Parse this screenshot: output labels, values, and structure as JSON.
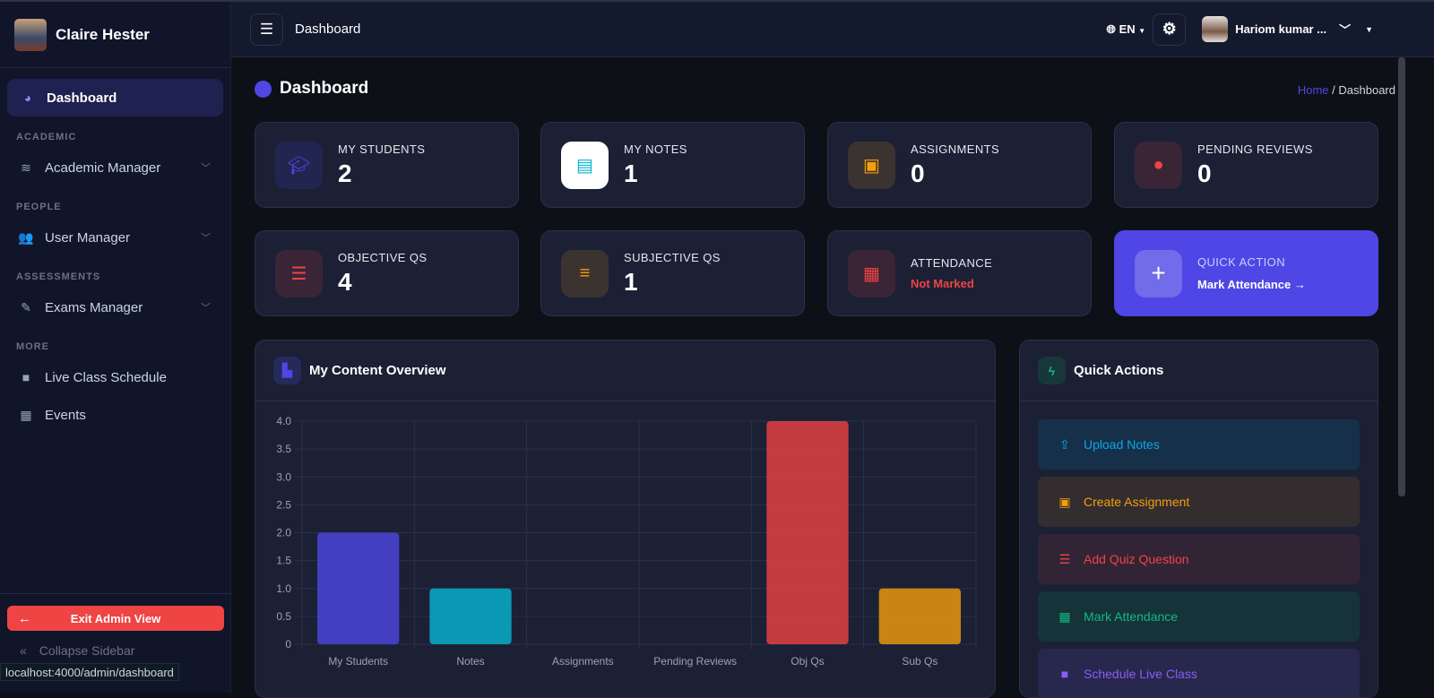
{
  "sidebar": {
    "user_name": "Claire Hester",
    "active": "Dashboard",
    "sections": [
      {
        "title": "ACADEMIC",
        "items": [
          {
            "label": "Academic Manager",
            "icon": "layers-icon"
          }
        ]
      },
      {
        "title": "PEOPLE",
        "items": [
          {
            "label": "User Manager",
            "icon": "users-icon"
          }
        ]
      },
      {
        "title": "ASSESSMENTS",
        "items": [
          {
            "label": "Exams Manager",
            "icon": "file-pen-icon"
          }
        ]
      },
      {
        "title": "MORE",
        "items": [
          {
            "label": "Live Class Schedule",
            "icon": "video-icon"
          },
          {
            "label": "Events",
            "icon": "calendar-icon"
          }
        ]
      }
    ],
    "exit_label": "Exit Admin View",
    "collapse_label": "Collapse Sidebar"
  },
  "status_url": "localhost:4000/admin/dashboard",
  "topbar": {
    "title": "Dashboard",
    "lang": "EN",
    "user": "Hariom kumar ..."
  },
  "page": {
    "title": "Dashboard",
    "breadcrumb": {
      "home": "Home",
      "current": "Dashboard"
    }
  },
  "stats": [
    {
      "label": "MY STUDENTS",
      "value": "2",
      "icon": "student-icon",
      "color": "#4f46e5"
    },
    {
      "label": "MY NOTES",
      "value": "1",
      "icon": "file-icon",
      "color": "#06b6d4"
    },
    {
      "label": "ASSIGNMENTS",
      "value": "0",
      "icon": "clipboard-icon",
      "color": "#f59e0b"
    },
    {
      "label": "PENDING REVIEWS",
      "value": "0",
      "icon": "clock-icon",
      "color": "#ef4444"
    },
    {
      "label": "OBJECTIVE QS",
      "value": "4",
      "icon": "list-check-icon",
      "color": "#ef4444"
    },
    {
      "label": "SUBJECTIVE QS",
      "value": "1",
      "icon": "align-left-icon",
      "color": "#f59e0b"
    },
    {
      "label": "ATTENDANCE",
      "value": "Not Marked",
      "icon": "calendar-icon",
      "color": "#ef4444"
    }
  ],
  "quick_action": {
    "label": "QUICK ACTION",
    "link": "Mark Attendance →"
  },
  "chart_panel": {
    "title": "My Content Overview"
  },
  "chart_data": {
    "type": "bar",
    "categories": [
      "My Students",
      "Notes",
      "Assignments",
      "Pending Reviews",
      "Obj Qs",
      "Sub Qs"
    ],
    "values": [
      2,
      1,
      0,
      0,
      4,
      1
    ],
    "colors": [
      "#4f46e5",
      "#06b6d4",
      "#f59e0b",
      "#ef4444",
      "#ef4444",
      "#f59e0b"
    ],
    "ylim": [
      0,
      4
    ],
    "yticks": [
      "0",
      "0.5",
      "1.0",
      "1.5",
      "2.0",
      "2.5",
      "3.0",
      "3.5",
      "4.0"
    ],
    "grid": true
  },
  "quick_actions": {
    "title": "Quick Actions",
    "items": [
      {
        "label": "Upload Notes",
        "icon": "upload-icon",
        "color": "#0ea5e9",
        "bg": "#163049"
      },
      {
        "label": "Create Assignment",
        "icon": "clipboard-icon",
        "color": "#f59e0b",
        "bg": "#332d2f"
      },
      {
        "label": "Add Quiz Question",
        "icon": "list-check-icon",
        "color": "#ef4444",
        "bg": "#332435"
      },
      {
        "label": "Mark Attendance",
        "icon": "calendar-check-icon",
        "color": "#10b981",
        "bg": "#163339"
      },
      {
        "label": "Schedule Live Class",
        "icon": "video-icon",
        "color": "#8b5cf6",
        "bg": "#28274d"
      }
    ]
  }
}
